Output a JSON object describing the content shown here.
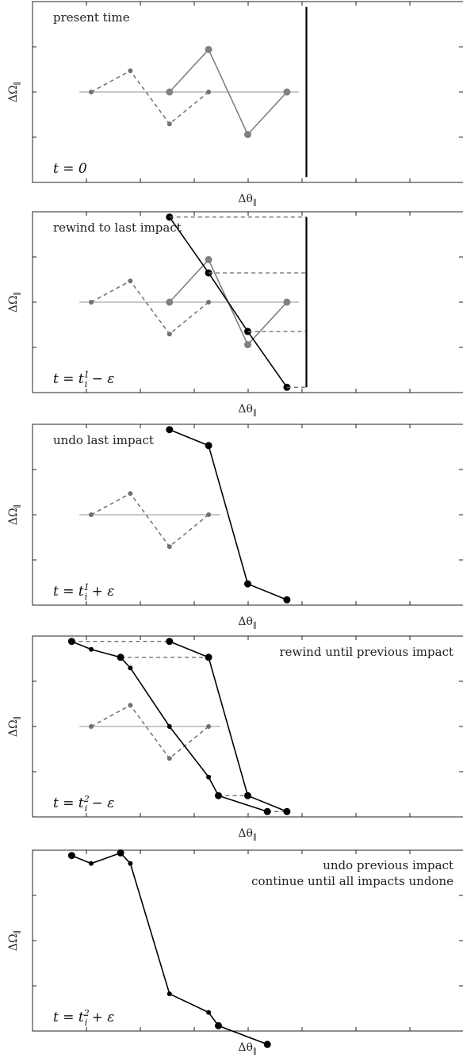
{
  "figure": {
    "xlabel": "Δθ∥",
    "ylabel": "ΔΩ∥"
  },
  "colors": {
    "black": "#000000",
    "gray": "#808080",
    "grayDashed": "#707070",
    "baseline": "#909090"
  },
  "chart_data": [
    {
      "type": "line",
      "annotation": "present time",
      "time_label": "t = 0",
      "xlabel": "Δθ∥",
      "ylabel": "ΔΩ∥",
      "xlim": [
        0,
        11
      ],
      "ylim": [
        -1.7,
        1.7
      ],
      "series": [
        {
          "style": "baseline",
          "color": "#909090",
          "points": [
            [
              1.2,
              0
            ],
            [
              6.8,
              0
            ]
          ]
        },
        {
          "style": "gray-dashed-small",
          "color": "#707070",
          "points": [
            [
              1.5,
              0
            ],
            [
              2.5,
              0.4
            ],
            [
              3.5,
              -0.6
            ],
            [
              4.5,
              0
            ]
          ]
        },
        {
          "style": "gray-solid",
          "color": "#808080",
          "points": [
            [
              3.5,
              0
            ],
            [
              4.5,
              0.8
            ],
            [
              5.5,
              -0.8
            ],
            [
              6.5,
              0
            ]
          ]
        },
        {
          "style": "vertical-bar",
          "color": "#000000",
          "points": [
            [
              7.0,
              1.6
            ],
            [
              7.0,
              -1.6
            ]
          ]
        }
      ]
    },
    {
      "type": "line",
      "annotation": "rewind to last impact",
      "time_label": "t = t_i^1 − ε",
      "xlabel": "Δθ∥",
      "ylabel": "ΔΩ∥",
      "xlim": [
        0,
        11
      ],
      "ylim": [
        -1.7,
        1.7
      ],
      "series": [
        {
          "style": "baseline",
          "color": "#909090",
          "points": [
            [
              1.2,
              0
            ],
            [
              6.8,
              0
            ]
          ]
        },
        {
          "style": "gray-dashed-small",
          "color": "#707070",
          "points": [
            [
              1.5,
              0
            ],
            [
              2.5,
              0.4
            ],
            [
              3.5,
              -0.6
            ],
            [
              4.5,
              0
            ]
          ]
        },
        {
          "style": "gray-solid",
          "color": "#808080",
          "points": [
            [
              3.5,
              0
            ],
            [
              4.5,
              0.8
            ],
            [
              5.5,
              -0.8
            ],
            [
              6.5,
              0
            ]
          ]
        },
        {
          "style": "black-solid",
          "color": "#000000",
          "points": [
            [
              3.5,
              1.6
            ],
            [
              4.5,
              0.55
            ],
            [
              5.5,
              -0.55
            ],
            [
              6.5,
              -1.6
            ]
          ]
        },
        {
          "style": "black-dashed",
          "color": "#707070",
          "points": [
            [
              3.5,
              1.6
            ],
            [
              7.0,
              1.6
            ]
          ]
        },
        {
          "style": "black-dashed",
          "color": "#707070",
          "points": [
            [
              4.5,
              0.55
            ],
            [
              7.0,
              0.55
            ]
          ]
        },
        {
          "style": "black-dashed",
          "color": "#707070",
          "points": [
            [
              5.5,
              -0.55
            ],
            [
              7.0,
              -0.55
            ]
          ]
        },
        {
          "style": "black-dashed",
          "color": "#707070",
          "points": [
            [
              6.5,
              -1.6
            ],
            [
              7.0,
              -1.6
            ]
          ]
        },
        {
          "style": "vertical-bar",
          "color": "#000000",
          "points": [
            [
              7.0,
              1.6
            ],
            [
              7.0,
              -1.6
            ]
          ]
        }
      ]
    },
    {
      "type": "line",
      "annotation": "undo last impact",
      "time_label": "t = t_i^1 + ε",
      "xlabel": "Δθ∥",
      "ylabel": "ΔΩ∥",
      "xlim": [
        0,
        11
      ],
      "ylim": [
        -1.7,
        1.7
      ],
      "series": [
        {
          "style": "baseline",
          "color": "#909090",
          "points": [
            [
              1.2,
              0
            ],
            [
              4.8,
              0
            ]
          ]
        },
        {
          "style": "gray-dashed-small",
          "color": "#707070",
          "points": [
            [
              1.5,
              0
            ],
            [
              2.5,
              0.4
            ],
            [
              3.5,
              -0.6
            ],
            [
              4.5,
              0
            ]
          ]
        },
        {
          "style": "black-solid",
          "color": "#000000",
          "points": [
            [
              3.5,
              1.6
            ],
            [
              4.5,
              1.3
            ],
            [
              5.5,
              -1.3
            ],
            [
              6.5,
              -1.6
            ]
          ]
        }
      ]
    },
    {
      "type": "line",
      "annotation": "rewind until previous impact",
      "time_label": "t = t_i^2 − ε",
      "xlabel": "Δθ∥",
      "ylabel": "ΔΩ∥",
      "xlim": [
        0,
        11
      ],
      "ylim": [
        -1.7,
        1.7
      ],
      "series": [
        {
          "style": "baseline",
          "color": "#909090",
          "points": [
            [
              1.2,
              0
            ],
            [
              4.8,
              0
            ]
          ]
        },
        {
          "style": "gray-dashed-small",
          "color": "#707070",
          "points": [
            [
              1.5,
              0
            ],
            [
              2.5,
              0.4
            ],
            [
              3.5,
              -0.6
            ],
            [
              4.5,
              0
            ]
          ]
        },
        {
          "style": "black-dashed",
          "color": "#707070",
          "points": [
            [
              1.0,
              1.6
            ],
            [
              3.5,
              1.6
            ]
          ]
        },
        {
          "style": "black-dashed",
          "color": "#707070",
          "points": [
            [
              2.25,
              1.3
            ],
            [
              4.5,
              1.3
            ]
          ]
        },
        {
          "style": "black-dashed",
          "color": "#707070",
          "points": [
            [
              4.75,
              -1.3
            ],
            [
              5.5,
              -1.3
            ]
          ]
        },
        {
          "style": "black-dashed",
          "color": "#707070",
          "points": [
            [
              6.0,
              -1.6
            ],
            [
              6.5,
              -1.6
            ]
          ]
        },
        {
          "style": "black-solid",
          "color": "#000000",
          "points": [
            [
              3.5,
              1.6
            ],
            [
              4.5,
              1.3
            ],
            [
              5.5,
              -1.3
            ],
            [
              6.5,
              -1.6
            ]
          ]
        },
        {
          "style": "black-solid-mixed",
          "color": "#000000",
          "points": [
            [
              1.0,
              1.6
            ],
            [
              1.5,
              1.45
            ],
            [
              2.25,
              1.3
            ],
            [
              2.5,
              1.1
            ],
            [
              3.5,
              0.0
            ],
            [
              4.5,
              -0.95
            ],
            [
              4.75,
              -1.3
            ],
            [
              6.0,
              -1.6
            ]
          ],
          "big": [
            1.0,
            2.25,
            4.75,
            6.0
          ]
        }
      ]
    },
    {
      "type": "line",
      "annotation": "undo previous impact",
      "annotation2": "continue until all impacts undone",
      "time_label": "t = t_i^2 + ε",
      "xlabel": "Δθ∥",
      "ylabel": "ΔΩ∥",
      "xlim": [
        0,
        11
      ],
      "ylim": [
        -1.7,
        1.7
      ],
      "series": [
        {
          "style": "black-solid-mixed",
          "color": "#000000",
          "points": [
            [
              1.0,
              1.6
            ],
            [
              1.5,
              1.45
            ],
            [
              2.25,
              1.65
            ],
            [
              2.5,
              1.45
            ],
            [
              3.5,
              -1.0
            ],
            [
              4.5,
              -1.35
            ],
            [
              4.75,
              -1.6
            ],
            [
              6.0,
              -1.95
            ]
          ],
          "big": [
            1.0,
            2.25,
            4.75,
            6.0
          ]
        }
      ]
    }
  ]
}
